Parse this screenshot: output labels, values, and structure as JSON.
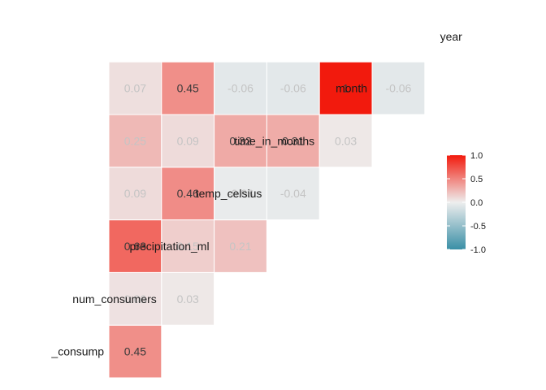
{
  "chart_data": {
    "type": "heatmap",
    "variables": [
      "_consump",
      "num_consumers",
      "precipitation_ml",
      "temp_celsius",
      "time_in_months",
      "month",
      "year"
    ],
    "cells": [
      {
        "row": "num_consumers",
        "col": "_consump",
        "value": 0.45,
        "label": "0.45"
      },
      {
        "row": "precipitation_ml",
        "col": "_consump",
        "value": 0.06,
        "label": "0.06"
      },
      {
        "row": "precipitation_ml",
        "col": "num_consumers",
        "value": 0.03,
        "label": "0.03"
      },
      {
        "row": "temp_celsius",
        "col": "_consump",
        "value": 0.63,
        "label": "0.63"
      },
      {
        "row": "temp_celsius",
        "col": "num_consumers",
        "value": 0.15,
        "label": "0.15"
      },
      {
        "row": "temp_celsius",
        "col": "precipitation_ml",
        "value": 0.21,
        "label": "0.21"
      },
      {
        "row": "time_in_months",
        "col": "_consump",
        "value": 0.09,
        "label": "0.09"
      },
      {
        "row": "time_in_months",
        "col": "num_consumers",
        "value": 0.46,
        "label": "0.46"
      },
      {
        "row": "time_in_months",
        "col": "precipitation_ml",
        "value": -0.03,
        "label": "-0.03"
      },
      {
        "row": "time_in_months",
        "col": "temp_celsius",
        "value": -0.04,
        "label": "-0.04"
      },
      {
        "row": "month",
        "col": "_consump",
        "value": 0.25,
        "label": "0.25"
      },
      {
        "row": "month",
        "col": "num_consumers",
        "value": 0.09,
        "label": "0.09"
      },
      {
        "row": "month",
        "col": "precipitation_ml",
        "value": 0.32,
        "label": "0.32"
      },
      {
        "row": "month",
        "col": "temp_celsius",
        "value": 0.31,
        "label": "0.31"
      },
      {
        "row": "month",
        "col": "time_in_months",
        "value": 0.03,
        "label": "0.03"
      },
      {
        "row": "year",
        "col": "_consump",
        "value": 0.07,
        "label": "0.07"
      },
      {
        "row": "year",
        "col": "num_consumers",
        "value": 0.45,
        "label": "0.45"
      },
      {
        "row": "year",
        "col": "precipitation_ml",
        "value": -0.06,
        "label": "-0.06"
      },
      {
        "row": "year",
        "col": "temp_celsius",
        "value": -0.06,
        "label": "-0.06"
      },
      {
        "row": "year",
        "col": "time_in_months",
        "value": 1,
        "label": "1"
      },
      {
        "row": "year",
        "col": "month",
        "value": -0.06,
        "label": "-0.06"
      }
    ],
    "color_scale": {
      "domain": [
        -1,
        0,
        1
      ],
      "low": "#3a8fa6",
      "mid": "#eeeeee",
      "high": "#f21a0d"
    },
    "legend": {
      "position": "right",
      "ticks": [
        {
          "value": 1.0,
          "label": "1.0"
        },
        {
          "value": 0.5,
          "label": "0.5"
        },
        {
          "value": 0.0,
          "label": "0.0"
        },
        {
          "value": -0.5,
          "label": "-0.5"
        },
        {
          "value": -1.0,
          "label": "-1.0"
        }
      ]
    },
    "title": "",
    "xlabel": "",
    "ylabel": ""
  }
}
